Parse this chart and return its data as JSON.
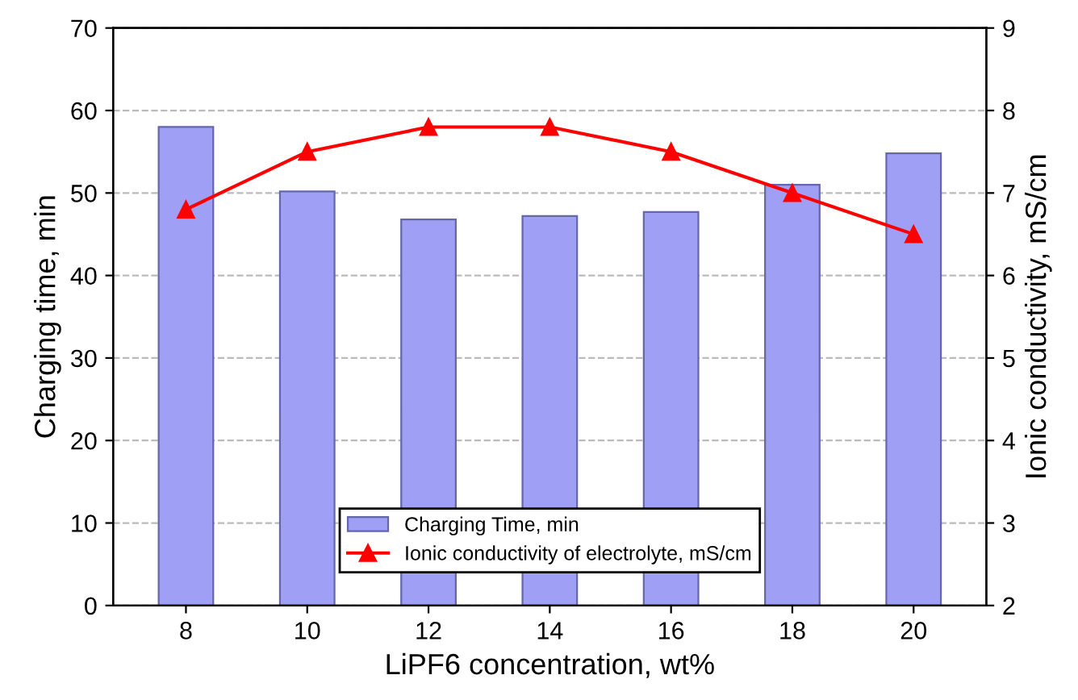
{
  "chart_data": {
    "type": "bar",
    "xlabel": "LiPF6 concentration, wt%",
    "ylabel": "Charging time, min",
    "y2label": "Ionic conductivity, mS/cm",
    "categories": [
      "8",
      "10",
      "12",
      "14",
      "16",
      "18",
      "20"
    ],
    "series": [
      {
        "name": "Charging Time, min",
        "color": "#9f9ff5",
        "values": [
          58,
          50.2,
          46.8,
          47.2,
          47.7,
          51,
          54.8
        ]
      },
      {
        "name": "Ionic conductivity of electrolyte, mS/cm",
        "type": "line",
        "axis": "y2",
        "color": "#ff0000",
        "marker": "triangle",
        "line_style": "solid",
        "values": [
          6.8,
          7.5,
          7.8,
          7.8,
          7.5,
          7.0,
          6.5
        ]
      }
    ],
    "ylim": [
      0,
      70
    ],
    "yticks": [
      0,
      10,
      20,
      30,
      40,
      50,
      60,
      70
    ],
    "y2lim": [
      2,
      9
    ],
    "y2ticks": [
      2,
      3,
      4,
      5,
      6,
      7,
      8,
      9
    ],
    "grid": "y",
    "legend": "bottom"
  }
}
